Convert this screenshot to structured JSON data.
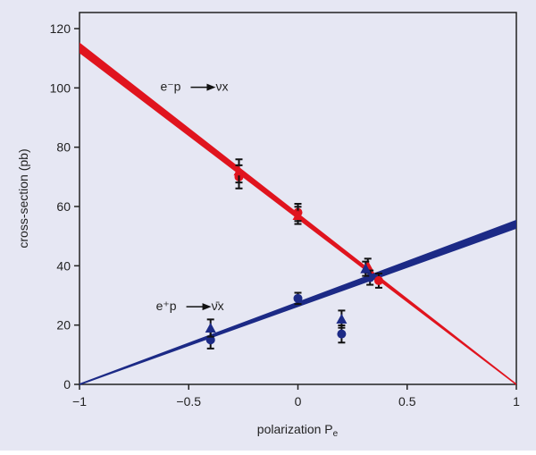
{
  "chart_data": {
    "type": "scatter",
    "title": "",
    "xlabel": "polarization P",
    "xlabel_sub": "e",
    "ylabel": "cross-section (pb)",
    "xlim": [
      -1,
      1
    ],
    "ylim": [
      0,
      120
    ],
    "xticks": [
      -1,
      -0.5,
      0,
      0.5,
      1
    ],
    "xtick_labels": [
      "−1",
      "−0.5",
      "0",
      "0.5",
      "1"
    ],
    "yticks": [
      0,
      20,
      40,
      60,
      80,
      100,
      120
    ],
    "ytick_labels": [
      "0",
      "20",
      "40",
      "60",
      "80",
      "100",
      "120"
    ],
    "grid": false,
    "series": [
      {
        "name": "e⁻p → νX",
        "color": "#e0141e",
        "fit_line": [
          [
            -1,
            113.5
          ],
          [
            1,
            0
          ]
        ],
        "triangles": [
          {
            "x": -0.27,
            "y": 72,
            "err": 3
          },
          {
            "x": 0,
            "y": 57,
            "err": 2
          },
          {
            "x": 0.32,
            "y": 40,
            "err": 1.5
          }
        ],
        "circles": [
          {
            "x": -0.27,
            "y": 70,
            "err": 3
          },
          {
            "x": 0,
            "y": 58,
            "err": 2
          },
          {
            "x": 0.37,
            "y": 35,
            "err": 1.5
          }
        ]
      },
      {
        "name": "e⁺p → ν̄X",
        "color": "#1c2a86",
        "fit_line": [
          [
            -1,
            0
          ],
          [
            1,
            54
          ]
        ],
        "triangles": [
          {
            "x": -0.4,
            "y": 19,
            "err": 2
          },
          {
            "x": 0.2,
            "y": 22,
            "err": 2
          },
          {
            "x": 0.31,
            "y": 39,
            "err": 1.5
          }
        ],
        "circles": [
          {
            "x": -0.4,
            "y": 15,
            "err": 2
          },
          {
            "x": 0,
            "y": 29,
            "err": 1
          },
          {
            "x": 0.2,
            "y": 17,
            "err": 2
          },
          {
            "x": 0.33,
            "y": 36,
            "err": 1.5
          }
        ]
      }
    ],
    "annotations": [
      {
        "lhs": "e⁻p",
        "rhs": "νx",
        "x": -0.63,
        "y": 99
      },
      {
        "lhs": "e⁺p",
        "rhs": "ν̄x",
        "x": -0.65,
        "y": 25
      }
    ]
  }
}
